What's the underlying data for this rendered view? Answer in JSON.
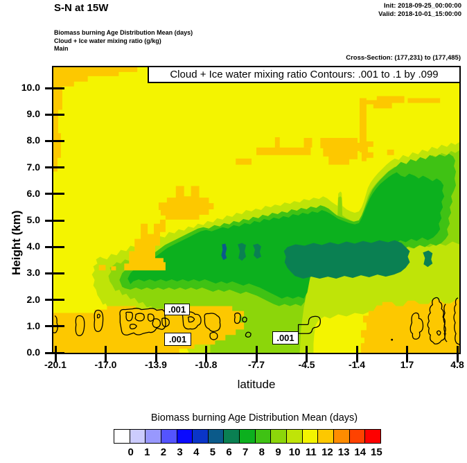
{
  "header": {
    "title": "S-N at 15W",
    "init_time": "Init: 2018-09-25_00:00:00",
    "valid_time": "Valid: 2018-10-01_15:00:00",
    "field_lines": {
      "line1": "Biomass burning Age Distribution Mean   (days)",
      "line2": "Cloud + Ice water mixing ratio   (g/kg)",
      "line3": "Main"
    },
    "cross_section": "Cross-Section: (177,231) to (177,485)"
  },
  "plot": {
    "contour_title": "Cloud + Ice water mixing ratio Contours: .001 to .1 by .099",
    "xlabel": "latitude",
    "ylabel": "Height (km)",
    "yticks": [
      "10.0",
      "9.0",
      "8.0",
      "7.0",
      "6.0",
      "5.0",
      "4.0",
      "3.0",
      "2.0",
      "1.0",
      "0.0"
    ],
    "xticks": [
      "-20.1",
      "-17.0",
      "-13.9",
      "-10.8",
      "-7.7",
      "-4.5",
      "-1.4",
      "1.7",
      "4.8"
    ],
    "contour_labels": [
      ".001",
      ".001",
      ".001"
    ]
  },
  "colorbar": {
    "title": "Biomass burning Age Distribution Mean  (days)",
    "labels": [
      "0",
      "1",
      "2",
      "3",
      "4",
      "5",
      "6",
      "7",
      "8",
      "9",
      "10",
      "11",
      "12",
      "13",
      "14",
      "15"
    ],
    "colors": [
      "#ffffff",
      "#ccccfe",
      "#9898fe",
      "#5454fe",
      "#0a0afe",
      "#0a35c8",
      "#0b5a8a",
      "#0a8052",
      "#0cb01e",
      "#3fc214",
      "#8cd60a",
      "#bfe408",
      "#f4f400",
      "#fdc800",
      "#fe8c00",
      "#fe4200",
      "#fe0000"
    ]
  },
  "chart_data": {
    "type": "heatmap",
    "title": "S-N vertical cross-section at 15W",
    "xlabel": "latitude",
    "ylabel": "Height (km)",
    "x_ticks": [
      -20.1,
      -17.0,
      -13.9,
      -10.8,
      -7.7,
      -4.5,
      -1.4,
      1.7,
      4.8
    ],
    "y_ticks": [
      0,
      1,
      2,
      3,
      4,
      5,
      6,
      7,
      8,
      9,
      10
    ],
    "x_range": [
      -20.1,
      4.8
    ],
    "y_range": [
      0,
      10.9
    ],
    "grid": false,
    "legend_position": "bottom",
    "fill_variable": "Biomass burning Age Distribution Mean (days)",
    "fill_levels_days": [
      0,
      1,
      2,
      3,
      4,
      5,
      6,
      7,
      8,
      9,
      10,
      11,
      12,
      13,
      14,
      15
    ],
    "filled_regions": [
      {
        "age_days": "11-12",
        "color": "#f4f400",
        "extent": "yellow background covering most of the section above 2 km and south of lat -14"
      },
      {
        "age_days": "12-13",
        "color": "#fdc800",
        "extent": "top-left corner above 10 km, strip along left edge, blob near lat -14 to -12 at 5-6.5 km, patches near 7-7.5 km between lat -9 and -4, band below 1.5 km from lat -20.1 to -12, bottom-right corner below 2 km north of lat 1.5, small patches near lat -1 at 9.5 km"
      },
      {
        "age_days": "10-11",
        "color": "#bfe408",
        "extent": "outer envelope of the plume from lat -15 to 4.8 between ~0.5 and 6 km, reaching ~7.5 km near the north edge"
      },
      {
        "age_days": "9-10",
        "color": "#8cd60a",
        "extent": "ring inside the 10-11 envelope, touches bottom between lat -14 and -8"
      },
      {
        "age_days": "8-9",
        "color": "#3fc214",
        "extent": "ring around core, includes lobe rising to ~7 km near lat 2-4"
      },
      {
        "age_days": "7-8",
        "color": "#0cb01e",
        "extent": "broad core lat -13 to 4 between 2 and 4.5 km with narrow finger up to 5.5 km near lat -1.5"
      },
      {
        "age_days": "6-7",
        "color": "#0a8052",
        "extent": "innermost core lat -6.5 to 1.5 at 2.8-4.2 km, small spots near lat -10 and lat 2.5"
      },
      {
        "age_days": "5-6",
        "color": "#0b5a8a",
        "extent": "tiny sliver near lat -9.8 at 3.5-4.1 km"
      }
    ],
    "line_contours": {
      "variable": "Cloud + Ice water mixing ratio (g/kg)",
      "levels": [
        0.001,
        0.1
      ],
      "label": ".001",
      "extent": "scattered shallow cloud cells below ~1.8 km between lat -19 and -11, near lat -8.5, and along lat 4 to 4.8"
    }
  }
}
